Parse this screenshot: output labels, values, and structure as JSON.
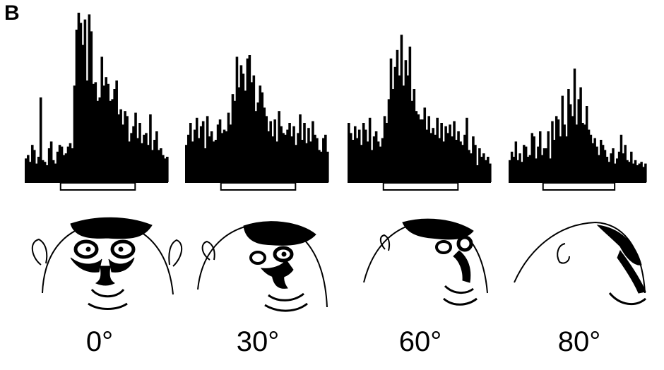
{
  "panel_label": "B",
  "colors": {
    "ink": "#000000",
    "background": "#ffffff"
  },
  "chart_data": [
    {
      "type": "bar",
      "label": "0°",
      "stimulus_bar": true,
      "face": "monkey-face-frontal",
      "values": [
        14,
        16,
        12,
        22,
        19,
        11,
        15,
        50,
        13,
        12,
        10,
        20,
        24,
        13,
        11,
        18,
        22,
        21,
        16,
        17,
        21,
        23,
        20,
        57,
        90,
        100,
        94,
        81,
        96,
        60,
        99,
        89,
        58,
        59,
        48,
        50,
        74,
        57,
        62,
        58,
        48,
        49,
        55,
        60,
        40,
        43,
        34,
        42,
        39,
        24,
        29,
        33,
        41,
        26,
        35,
        23,
        28,
        29,
        22,
        40,
        19,
        25,
        30,
        19,
        20,
        16,
        14,
        15
      ]
    },
    {
      "type": "bar",
      "label": "30°",
      "stimulus_bar": true,
      "face": "monkey-face-30deg",
      "values": [
        22,
        28,
        35,
        24,
        31,
        38,
        26,
        33,
        36,
        20,
        39,
        27,
        30,
        24,
        25,
        34,
        37,
        29,
        31,
        30,
        41,
        34,
        52,
        48,
        74,
        56,
        69,
        64,
        54,
        73,
        75,
        59,
        63,
        42,
        47,
        57,
        53,
        44,
        39,
        30,
        36,
        27,
        37,
        24,
        42,
        33,
        29,
        28,
        31,
        35,
        27,
        33,
        22,
        29,
        40,
        25,
        35,
        23,
        32,
        24,
        36,
        28,
        26,
        19,
        18,
        26,
        28,
        18
      ]
    },
    {
      "type": "bar",
      "label": "60°",
      "stimulus_bar": true,
      "face": "monkey-face-60deg",
      "values": [
        35,
        29,
        25,
        33,
        26,
        31,
        22,
        35,
        31,
        24,
        38,
        19,
        27,
        30,
        24,
        21,
        26,
        39,
        35,
        49,
        73,
        55,
        68,
        78,
        63,
        87,
        57,
        72,
        63,
        80,
        48,
        55,
        42,
        40,
        37,
        37,
        44,
        31,
        39,
        29,
        32,
        28,
        38,
        26,
        35,
        24,
        33,
        29,
        34,
        27,
        36,
        25,
        30,
        24,
        22,
        28,
        38,
        19,
        17,
        27,
        22,
        10,
        20,
        15,
        17,
        13,
        15,
        11
      ]
    },
    {
      "type": "bar",
      "label": "80°",
      "stimulus_bar": true,
      "face": "monkey-face-80deg",
      "values": [
        13,
        18,
        15,
        24,
        13,
        17,
        12,
        22,
        21,
        15,
        16,
        29,
        27,
        14,
        21,
        30,
        16,
        20,
        20,
        30,
        14,
        36,
        25,
        39,
        37,
        27,
        51,
        34,
        27,
        55,
        46,
        39,
        67,
        34,
        49,
        56,
        35,
        34,
        45,
        31,
        28,
        23,
        26,
        21,
        16,
        25,
        22,
        19,
        15,
        12,
        17,
        20,
        11,
        14,
        18,
        28,
        17,
        22,
        13,
        12,
        18,
        11,
        13,
        10,
        11,
        12,
        9,
        11
      ]
    }
  ]
}
